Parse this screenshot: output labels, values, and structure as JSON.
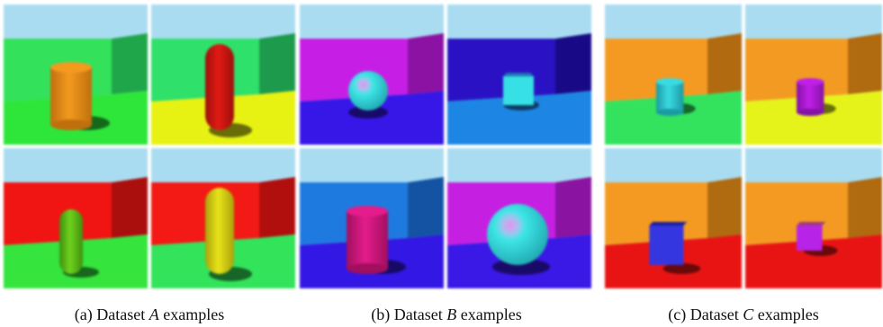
{
  "panels": [
    {
      "caption_prefix": "(a) Dataset ",
      "caption_var": "A",
      "caption_suffix": " examples",
      "scenes": [
        {
          "sky": "#a9dcf0",
          "wall": "#33e15b",
          "wall_dark": "#1fa64a",
          "floor": "#2ee63a",
          "object": "cylinder",
          "object_color": "#f39a1f",
          "object_shade": "#c06f0d"
        },
        {
          "sky": "#a9dcf0",
          "wall": "#2fe06a",
          "wall_dark": "#1d9a4c",
          "floor": "#e7f212",
          "object": "capsule",
          "object_color": "#e11a14",
          "object_shade": "#9e0f0c"
        },
        {
          "sky": "#a9dcf0",
          "wall": "#f01412",
          "wall_dark": "#aa0e0d",
          "floor": "#35e43d",
          "object": "capsule-small",
          "object_color": "#6fd21d",
          "object_shade": "#3f8f0f"
        },
        {
          "sky": "#a9dcf0",
          "wall": "#f31914",
          "wall_dark": "#b00f0e",
          "floor": "#33e35a",
          "object": "capsule",
          "object_color": "#e8e41a",
          "object_shade": "#a9a20c"
        }
      ]
    },
    {
      "caption_prefix": "(b) Dataset ",
      "caption_var": "B",
      "caption_suffix": " examples",
      "scenes": [
        {
          "sky": "#a9dcf0",
          "wall": "#c61ee4",
          "wall_dark": "#8c12a4",
          "floor": "#3617e8",
          "object": "sphere",
          "object_color": "#3ee6e6",
          "object_shade": "#1fa8b0"
        },
        {
          "sky": "#a9dcf0",
          "wall": "#2a12c4",
          "wall_dark": "#180a86",
          "floor": "#1d86e4",
          "object": "cube",
          "object_color": "#37e0e4",
          "object_shade": "#1ea2ae"
        },
        {
          "sky": "#a9dcf0",
          "wall": "#1f7ae0",
          "wall_dark": "#1453a4",
          "floor": "#3317e4",
          "object": "cylinder",
          "object_color": "#e41c8c",
          "object_shade": "#a10f5e"
        },
        {
          "sky": "#a9dcf0",
          "wall": "#c51fe2",
          "wall_dark": "#8a13a2",
          "floor": "#3a18e6",
          "object": "sphere-big",
          "object_color": "#3ee6e6",
          "object_shade": "#1fa8b0"
        }
      ]
    },
    {
      "caption_prefix": "(c) Dataset ",
      "caption_var": "C",
      "caption_suffix": " examples",
      "scenes": [
        {
          "sky": "#a9dcf0",
          "wall": "#f49a22",
          "wall_dark": "#b16a10",
          "floor": "#33e35e",
          "object": "cylinder-small",
          "object_color": "#38dbe2",
          "object_shade": "#1c9aa4"
        },
        {
          "sky": "#a9dcf0",
          "wall": "#f39a22",
          "wall_dark": "#b06a10",
          "floor": "#e6f31a",
          "object": "cylinder-small",
          "object_color": "#c11fe8",
          "object_shade": "#8412a6"
        },
        {
          "sky": "#a9dcf0",
          "wall": "#f49a22",
          "wall_dark": "#b06a10",
          "floor": "#e81414",
          "object": "cube-dark",
          "object_color": "#3436e0",
          "object_shade": "#1c1e9c"
        },
        {
          "sky": "#a9dcf0",
          "wall": "#f49a22",
          "wall_dark": "#b06a10",
          "floor": "#e81414",
          "object": "cube-small",
          "object_color": "#b823e8",
          "object_shade": "#7e13a4"
        }
      ]
    }
  ]
}
